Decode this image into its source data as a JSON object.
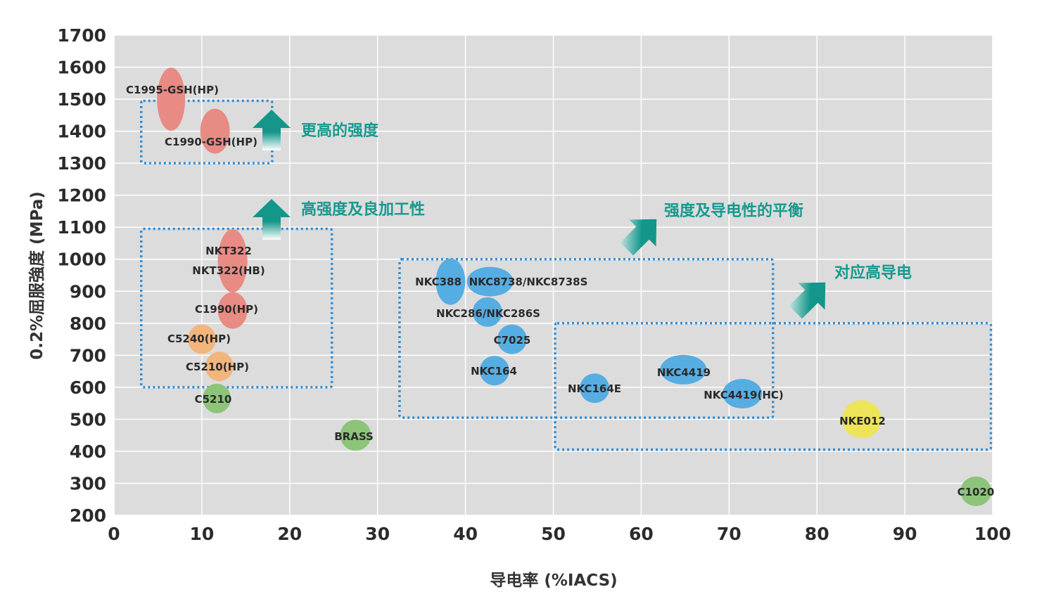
{
  "chart_data": {
    "type": "scatter",
    "xlabel": "导电率 (%IACS)",
    "ylabel": "0.2%屈服強度 (MPa)",
    "xlim": [
      0,
      100
    ],
    "ylim": [
      200,
      1700
    ],
    "x_ticks": [
      "0",
      "10",
      "20",
      "30",
      "40",
      "50",
      "60",
      "70",
      "80",
      "90",
      "100"
    ],
    "y_ticks": [
      "200",
      "300",
      "400",
      "500",
      "600",
      "700",
      "800",
      "900",
      "1000",
      "1100",
      "1200",
      "1300",
      "1400",
      "1500",
      "1600",
      "1700"
    ],
    "grid": true,
    "background": "#dcdcdc",
    "colors": {
      "red": "#e88b84",
      "orange": "#f2b57c",
      "green": "#8cc47a",
      "blue": "#56ade2",
      "yellow": "#eee45a",
      "box": "#2f8fd8",
      "annotation": "#16998e"
    },
    "points": [
      {
        "label": "C1995-GSH(HP)",
        "x": 6.5,
        "y": 1500,
        "color": "red"
      },
      {
        "label": "C1990-GSH(HP)",
        "x": 11.5,
        "y": 1400,
        "color": "red"
      },
      {
        "label": "NKT322",
        "x": 13.5,
        "y": 1025,
        "color": "red"
      },
      {
        "label": "NKT322(HB)",
        "x": 13.5,
        "y": 965,
        "color": "red"
      },
      {
        "label": "C1990(HP)",
        "x": 13.5,
        "y": 840,
        "color": "red"
      },
      {
        "label": "C5240(HP)",
        "x": 10,
        "y": 750,
        "color": "orange"
      },
      {
        "label": "C5210(HP)",
        "x": 12,
        "y": 665,
        "color": "orange"
      },
      {
        "label": "C5210",
        "x": 11.7,
        "y": 565,
        "color": "green"
      },
      {
        "label": "BRASS",
        "x": 27.5,
        "y": 450,
        "color": "green"
      },
      {
        "label": "NKC388",
        "x": 38.3,
        "y": 930,
        "color": "blue"
      },
      {
        "label": "NKC8738/NKC8738S",
        "x": 42.8,
        "y": 930,
        "color": "blue"
      },
      {
        "label": "NKC286/NKC286S",
        "x": 42.5,
        "y": 835,
        "color": "blue"
      },
      {
        "label": "C7025",
        "x": 45.3,
        "y": 750,
        "color": "blue"
      },
      {
        "label": "NKC164",
        "x": 43.3,
        "y": 652,
        "color": "blue"
      },
      {
        "label": "NKC164E",
        "x": 54.7,
        "y": 597,
        "color": "blue"
      },
      {
        "label": "NKC4419",
        "x": 64.8,
        "y": 655,
        "color": "blue"
      },
      {
        "label": "NKC4419(HC)",
        "x": 71.5,
        "y": 580,
        "color": "blue"
      },
      {
        "label": "NKE012",
        "x": 85.1,
        "y": 500,
        "color": "yellow"
      },
      {
        "label": "C1020",
        "x": 98.1,
        "y": 275,
        "color": "green"
      }
    ],
    "annotations": [
      {
        "label": "更高的强度",
        "direction": "up"
      },
      {
        "label": "高强度及良加工性",
        "direction": "up"
      },
      {
        "label": "强度及导电性的平衡",
        "direction": "diagonal"
      },
      {
        "label": "对应高导电",
        "direction": "diagonal"
      }
    ]
  }
}
